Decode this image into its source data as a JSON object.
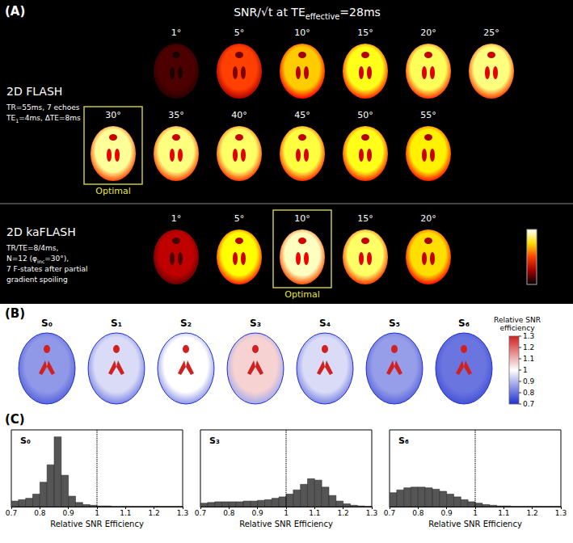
{
  "panel_a": {
    "letter": "(A)",
    "title": [
      {
        "text": "SNR/√t  at TE"
      },
      {
        "text": "effective",
        "sub": true
      },
      {
        "text": "=28ms"
      }
    ],
    "optimal_label": "Optimal",
    "rows": [
      {
        "name": "2D FLASH",
        "params": [
          [
            {
              "text": "TR=55ms, 7 echoes"
            }
          ],
          [
            {
              "text": "TE"
            },
            {
              "text": "1",
              "sub": true
            },
            {
              "text": "=4ms, ΔTE=8ms"
            }
          ]
        ],
        "images": [
          {
            "label": "1°",
            "relative_snr": 0.12
          },
          {
            "label": "5°",
            "relative_snr": 0.5
          },
          {
            "label": "10°",
            "relative_snr": 0.72
          },
          {
            "label": "15°",
            "relative_snr": 0.82
          },
          {
            "label": "20°",
            "relative_snr": 0.87
          },
          {
            "label": "25°",
            "relative_snr": 0.9
          },
          {
            "label": "30°",
            "relative_snr": 0.92,
            "optimal": true
          },
          {
            "label": "35°",
            "relative_snr": 0.9
          },
          {
            "label": "40°",
            "relative_snr": 0.88
          },
          {
            "label": "45°",
            "relative_snr": 0.85
          },
          {
            "label": "50°",
            "relative_snr": 0.82
          },
          {
            "label": "55°",
            "relative_snr": 0.78
          }
        ]
      },
      {
        "name": "2D kaFLASH",
        "params": [
          [
            {
              "text": "TR/TE=8/4ms,"
            }
          ],
          [
            {
              "text": "N=12 (φ"
            },
            {
              "text": "inc",
              "sub": true
            },
            {
              "text": "=30°),"
            }
          ],
          [
            {
              "text": "7 F-states after partial"
            }
          ],
          [
            {
              "text": "gradient spoiling"
            }
          ]
        ],
        "images": [
          {
            "label": "1°",
            "relative_snr": 0.3
          },
          {
            "label": "5°",
            "relative_snr": 0.8
          },
          {
            "label": "10°",
            "relative_snr": 0.95,
            "optimal": true
          },
          {
            "label": "15°",
            "relative_snr": 0.88
          },
          {
            "label": "20°",
            "relative_snr": 0.75
          }
        ]
      }
    ]
  },
  "panel_b": {
    "letter": "(B)",
    "maps": [
      {
        "label": "S₀",
        "relative_snr_efficiency": 0.85
      },
      {
        "label": "S₁",
        "relative_snr_efficiency": 0.95
      },
      {
        "label": "S₂",
        "relative_snr_efficiency": 1.0
      },
      {
        "label": "S₃",
        "relative_snr_efficiency": 1.06
      },
      {
        "label": "S₄",
        "relative_snr_efficiency": 0.95
      },
      {
        "label": "S₅",
        "relative_snr_efficiency": 0.86
      },
      {
        "label": "S₆",
        "relative_snr_efficiency": 0.8
      }
    ],
    "colorbar": {
      "label": "Relative SNR efficiency",
      "range": [
        0.7,
        1.3
      ],
      "ticks": [
        0.7,
        0.8,
        0.9,
        1,
        1.1,
        1.2,
        1.3
      ]
    }
  },
  "panel_c": {
    "letter": "(C)"
  },
  "chart_data": [
    {
      "type": "histogram",
      "title": "S₀",
      "xlabel": "Relative SNR Efficiency",
      "bins": [
        0.7,
        0.725,
        0.75,
        0.775,
        0.8,
        0.825,
        0.85,
        0.875,
        0.9,
        0.925,
        0.95,
        0.975,
        1,
        1.025,
        1.05,
        1.075,
        1.1,
        1.125,
        1.15,
        1.175,
        1.2,
        1.225,
        1.25,
        1.275,
        1.3
      ],
      "counts": [
        8,
        10,
        12,
        18,
        35,
        60,
        100,
        45,
        15,
        6,
        3,
        2,
        1,
        1,
        0,
        0,
        0,
        0,
        0,
        0,
        0,
        0,
        0,
        0
      ],
      "xlim": [
        0.7,
        1.3
      ],
      "xticks": [
        0.7,
        0.8,
        0.9,
        1,
        1.1,
        1.2,
        1.3
      ],
      "ylim": [
        0,
        110
      ],
      "tick_labels": "x",
      "reference_line": 1,
      "color": "#555555"
    },
    {
      "type": "histogram",
      "title": "S₃",
      "xlabel": "Relative SNR Efficiency",
      "bins": [
        0.7,
        0.725,
        0.75,
        0.775,
        0.8,
        0.825,
        0.85,
        0.875,
        0.9,
        0.925,
        0.95,
        0.975,
        1,
        1.025,
        1.05,
        1.075,
        1.1,
        1.125,
        1.15,
        1.175,
        1.2,
        1.225,
        1.25,
        1.275,
        1.3
      ],
      "counts": [
        5,
        6,
        7,
        7,
        7,
        7,
        8,
        8,
        9,
        10,
        12,
        14,
        18,
        24,
        32,
        40,
        38,
        28,
        16,
        8,
        4,
        2,
        1,
        0
      ],
      "xlim": [
        0.7,
        1.3
      ],
      "xticks": [
        0.7,
        0.8,
        0.9,
        1,
        1.1,
        1.2,
        1.3
      ],
      "ylim": [
        0,
        110
      ],
      "tick_labels": "x",
      "reference_line": 1,
      "color": "#555555"
    },
    {
      "type": "histogram",
      "title": "S₆",
      "xlabel": "Relative SNR Efficiency",
      "bins": [
        0.7,
        0.725,
        0.75,
        0.775,
        0.8,
        0.825,
        0.85,
        0.875,
        0.9,
        0.925,
        0.95,
        0.975,
        1,
        1.025,
        1.05,
        1.075,
        1.1,
        1.125,
        1.15,
        1.175,
        1.2,
        1.225,
        1.25,
        1.275,
        1.3
      ],
      "counts": [
        20,
        24,
        27,
        28,
        28,
        27,
        25,
        22,
        18,
        14,
        10,
        7,
        5,
        3,
        2,
        1,
        1,
        0,
        0,
        0,
        0,
        0,
        0,
        0
      ],
      "xlim": [
        0.7,
        1.3
      ],
      "xticks": [
        0.7,
        0.8,
        0.9,
        1,
        1.1,
        1.2,
        1.3
      ],
      "ylim": [
        0,
        110
      ],
      "tick_labels": "x",
      "reference_line": 1,
      "color": "#555555"
    }
  ]
}
